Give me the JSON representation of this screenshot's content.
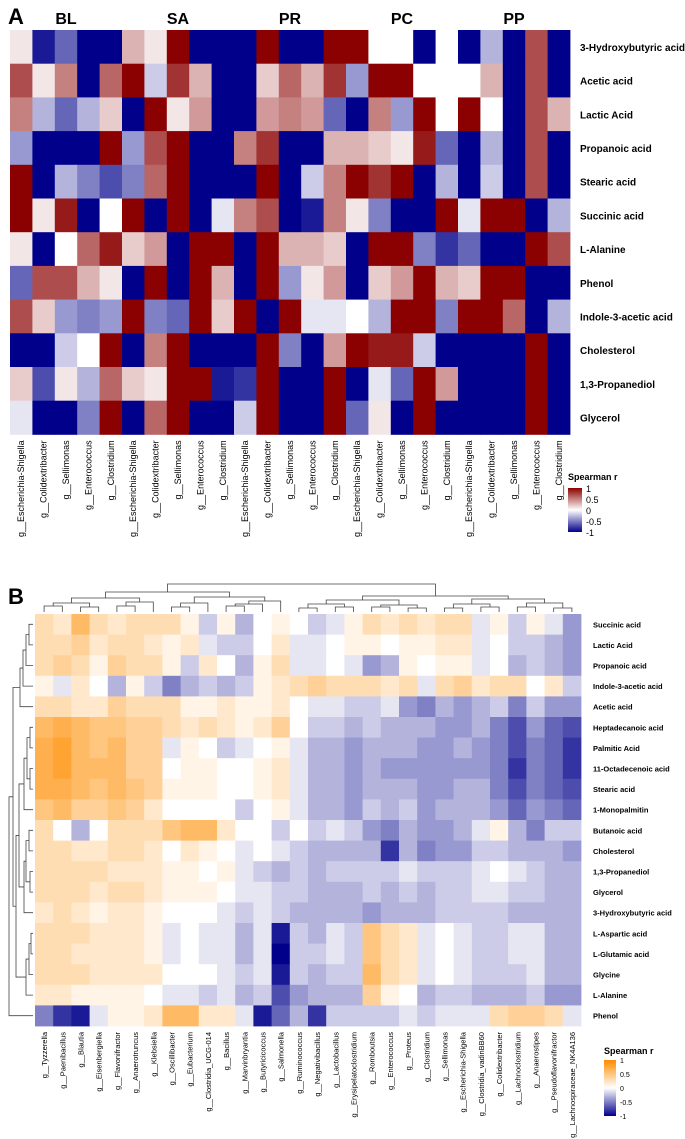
{
  "chart_data": [
    {
      "panel": "A",
      "type": "heatmap",
      "title": "",
      "groups": [
        "BL",
        "SA",
        "PR",
        "PC",
        "PP"
      ],
      "genera": [
        "g__Escherichia-Shigella",
        "g__Colidextribacter",
        "g__Sellimonas",
        "g__Enterococcus",
        "g__Clostridium"
      ],
      "metabolites": [
        "3-Hydroxybutyric acid",
        "Acetic acid",
        "Lactic Acid",
        "Propanoic acid",
        "Stearic acid",
        "Succinic acid",
        "L-Alanine",
        "Phenol",
        "Indole-3-acetic acid",
        "Cholesterol",
        "1,3-Propanediol",
        "Glycerol"
      ],
      "legend": {
        "title": "Spearman r",
        "ticks": [
          "1",
          "0.5",
          "0",
          "-0.5",
          "-1"
        ],
        "range": [
          -1,
          1
        ],
        "colors": {
          "neg": "#00008b",
          "mid": "#ffffff",
          "pos": "#8b0000"
        }
      },
      "values": {
        "BL": [
          [
            0.1,
            -0.9,
            -0.6,
            -1.0,
            -1.0
          ],
          [
            0.7,
            0.1,
            0.5,
            -1.0,
            0.6
          ],
          [
            0.5,
            -0.3,
            -0.6,
            -0.3,
            0.2
          ],
          [
            -0.4,
            -1.0,
            -1.0,
            -1.0,
            1.0
          ],
          [
            1.0,
            -1.0,
            -0.3,
            -0.5,
            -0.7
          ],
          [
            1.0,
            0.1,
            0.9,
            -1.0,
            0.0
          ],
          [
            0.1,
            -1.0,
            0.0,
            0.6,
            0.9
          ],
          [
            -0.6,
            0.7,
            0.7,
            0.3,
            0.1
          ],
          [
            0.7,
            0.2,
            -0.4,
            -0.5,
            -0.4
          ],
          [
            -1.0,
            -1.0,
            -0.2,
            0.0,
            1.0
          ],
          [
            0.2,
            -0.7,
            0.1,
            -0.3,
            0.6
          ],
          [
            -0.1,
            -1.0,
            -1.0,
            -0.5,
            1.0
          ]
        ],
        "SA": [
          [
            0.3,
            0.1,
            1.0,
            -1.0,
            -1.0
          ],
          [
            1.0,
            -0.2,
            0.8,
            0.3,
            -1.0
          ],
          [
            -1.0,
            1.0,
            0.1,
            0.4,
            -1.0
          ],
          [
            -0.4,
            0.7,
            1.0,
            -1.0,
            -1.0
          ],
          [
            -0.5,
            0.6,
            1.0,
            -1.0,
            -1.0
          ],
          [
            1.0,
            -1.0,
            1.0,
            -1.0,
            -0.1
          ],
          [
            0.2,
            0.4,
            -1.0,
            1.0,
            1.0
          ],
          [
            -1.0,
            1.0,
            -1.0,
            1.0,
            0.3
          ],
          [
            1.0,
            -0.5,
            -0.6,
            1.0,
            0.2
          ],
          [
            -1.0,
            0.5,
            1.0,
            -1.0,
            -1.0
          ],
          [
            0.2,
            0.1,
            1.0,
            1.0,
            -0.9
          ],
          [
            -1.0,
            0.6,
            1.0,
            -1.0,
            -1.0
          ]
        ],
        "PR": [
          [
            -1.0,
            1.0,
            -1.0,
            -1.0,
            1.0
          ],
          [
            -1.0,
            0.2,
            0.6,
            0.3,
            0.8
          ],
          [
            -1.0,
            0.4,
            0.5,
            0.4,
            -0.6
          ],
          [
            0.5,
            0.8,
            -1.0,
            -1.0,
            0.3
          ],
          [
            -1.0,
            1.0,
            -1.0,
            -0.2,
            0.5
          ],
          [
            0.5,
            0.7,
            -1.0,
            -0.9,
            0.5
          ],
          [
            -1.0,
            1.0,
            0.3,
            0.3,
            0.2
          ],
          [
            -1.0,
            1.0,
            -0.4,
            0.1,
            0.4
          ],
          [
            1.0,
            -1.0,
            1.0,
            -0.1,
            -0.1
          ],
          [
            -1.0,
            1.0,
            -0.5,
            -1.0,
            0.4
          ],
          [
            -0.8,
            1.0,
            -1.0,
            -1.0,
            1.0
          ],
          [
            -0.2,
            1.0,
            -1.0,
            -1.0,
            1.0
          ]
        ],
        "PC": [
          [
            1.0,
            0.0,
            0.0,
            -1.0,
            0.0
          ],
          [
            -0.4,
            1.0,
            1.0,
            0.0,
            0.0
          ],
          [
            -1.0,
            0.5,
            -0.4,
            1.0,
            0.0
          ],
          [
            0.3,
            0.2,
            0.1,
            0.9,
            -0.6
          ],
          [
            1.0,
            0.8,
            1.0,
            -1.0,
            -0.3
          ],
          [
            0.1,
            -0.5,
            -1.0,
            -1.0,
            1.0
          ],
          [
            -1.0,
            1.0,
            1.0,
            -0.5,
            -0.8
          ],
          [
            -1.0,
            0.2,
            0.4,
            1.0,
            0.3
          ],
          [
            0.0,
            -0.3,
            1.0,
            1.0,
            -0.5
          ],
          [
            1.0,
            0.9,
            0.9,
            -0.2,
            -1.0
          ],
          [
            -1.0,
            -0.1,
            -0.6,
            1.0,
            0.4
          ],
          [
            -0.6,
            0.1,
            -1.0,
            1.0,
            -1.0
          ]
        ],
        "PP": [
          [
            -1.0,
            -0.3,
            -1.0,
            0.7,
            -1.0
          ],
          [
            0.0,
            0.3,
            -1.0,
            0.7,
            -1.0
          ],
          [
            1.0,
            0.0,
            -1.0,
            0.7,
            0.3
          ],
          [
            -1.0,
            -0.3,
            -1.0,
            0.7,
            -1.0
          ],
          [
            -1.0,
            -0.2,
            -1.0,
            0.7,
            -1.0
          ],
          [
            -0.1,
            1.0,
            1.0,
            -1.0,
            -0.3
          ],
          [
            -0.6,
            -1.0,
            -1.0,
            1.0,
            0.7
          ],
          [
            0.2,
            1.0,
            1.0,
            -1.0,
            -1.0
          ],
          [
            1.0,
            1.0,
            0.6,
            -1.0,
            -0.3
          ],
          [
            -1.0,
            -1.0,
            -1.0,
            1.0,
            -1.0
          ],
          [
            -1.0,
            -1.0,
            -1.0,
            1.0,
            -1.0
          ],
          [
            -1.0,
            -1.0,
            -1.0,
            1.0,
            -1.0
          ]
        ]
      }
    },
    {
      "panel": "B",
      "type": "heatmap",
      "title": "",
      "genera": [
        "g__Tyzzerella",
        "g__Paenibacillus",
        "g__Blautia",
        "g__Eisenbergiella",
        "g__Flavonifractor",
        "g__Anaerotruncus",
        "g__Klebsiella",
        "g__Oscillibacter",
        "g__Eubacterium",
        "g__Clostridia_UCG-014",
        "g__Bacillus",
        "g__Marvinbryantia",
        "g__Butyricicoccus",
        "g__Salmonella",
        "g__Ruminococcus",
        "g__Negativibacillus",
        "g__Lactobacillus",
        "g__Erysipelatoclostridium",
        "g__Romboutsia",
        "g__Enterococcus",
        "g__Proteus",
        "g__Clostridium",
        "g__Sellimonas",
        "g__Escherichia-Shigella",
        "g__Clostridia_vadinBB60",
        "g__Colidextribacter",
        "g__Lachnoclostridium",
        "g__Anaerostipes",
        "g__Pseudoflavonifractor",
        "g__Lachnospiraceae_NK4A136"
      ],
      "metabolites": [
        "Succinic acid",
        "Lactic Acid",
        "Propanoic acid",
        "Indole-3-acetic acid",
        "Acetic acid",
        "Heptadecanoic acid",
        "Palmitic Acid",
        "11-Octadecenoic acid",
        "Stearic acid",
        "1-Monopalmitin",
        "Butanoic acid",
        "Cholesterol",
        "1,3-Propanediol",
        "Glycerol",
        "3-Hydroxybutyric acid",
        "L-Aspartic acid",
        "L-Glutamic acid",
        "Glycine",
        "L-Alanine",
        "Phenol"
      ],
      "legend": {
        "title": "Spearman r",
        "ticks": [
          "1",
          "0.5",
          "0",
          "-0.5",
          "-1"
        ],
        "range": [
          -1,
          1
        ],
        "colors": {
          "neg": "#00008b",
          "mid": "#ffffff",
          "pos": "#ff8c00"
        }
      },
      "values": [
        [
          0.3,
          0.2,
          0.6,
          0.3,
          0.2,
          0.3,
          0.3,
          0.3,
          0.1,
          -0.2,
          0.1,
          -0.3,
          0.0,
          0.1,
          0.0,
          -0.2,
          -0.1,
          0.1,
          0.3,
          0.2,
          0.3,
          0.2,
          0.3,
          0.3,
          -0.1,
          0.1,
          -0.2,
          0.1,
          -0.1,
          -0.4
        ],
        [
          0.3,
          0.3,
          0.4,
          0.2,
          0.3,
          0.3,
          0.2,
          0.1,
          0.2,
          -0.1,
          -0.2,
          -0.2,
          0.0,
          0.2,
          -0.1,
          -0.1,
          0.0,
          0.1,
          0.1,
          0.0,
          0.1,
          0.1,
          0.2,
          0.2,
          -0.1,
          0.0,
          -0.2,
          -0.2,
          -0.3,
          -0.4
        ],
        [
          0.3,
          0.4,
          0.3,
          0.1,
          0.4,
          0.3,
          0.3,
          0.1,
          -0.2,
          0.2,
          0.0,
          -0.3,
          0.1,
          0.3,
          -0.1,
          -0.1,
          0.0,
          -0.1,
          -0.4,
          -0.3,
          0.1,
          0.0,
          0.1,
          0.1,
          -0.1,
          0.0,
          -0.3,
          -0.2,
          -0.3,
          -0.4
        ],
        [
          0.1,
          -0.1,
          0.2,
          0.0,
          -0.3,
          0.1,
          -0.2,
          -0.5,
          -0.3,
          -0.2,
          -0.3,
          -0.2,
          0.1,
          0.2,
          0.3,
          0.4,
          0.3,
          0.3,
          0.3,
          0.2,
          0.3,
          -0.1,
          0.3,
          0.4,
          0.2,
          0.3,
          0.3,
          0.0,
          0.2,
          -0.2
        ],
        [
          0.3,
          0.3,
          0.2,
          0.2,
          0.4,
          0.3,
          0.3,
          0.3,
          0.1,
          0.1,
          0.2,
          0.1,
          0.1,
          0.2,
          0.0,
          -0.1,
          -0.1,
          -0.2,
          -0.2,
          -0.1,
          -0.4,
          -0.5,
          -0.3,
          -0.4,
          -0.3,
          -0.2,
          -0.5,
          -0.2,
          -0.4,
          -0.4
        ],
        [
          0.6,
          0.7,
          0.6,
          0.5,
          0.5,
          0.4,
          0.4,
          0.3,
          0.2,
          0.3,
          0.2,
          0.1,
          0.2,
          0.4,
          0.0,
          -0.2,
          -0.2,
          -0.3,
          -0.2,
          -0.3,
          -0.3,
          -0.3,
          -0.4,
          -0.4,
          -0.3,
          -0.5,
          -0.7,
          -0.4,
          -0.6,
          -0.7
        ],
        [
          0.7,
          0.8,
          0.6,
          0.5,
          0.6,
          0.4,
          0.4,
          -0.1,
          0.1,
          0.0,
          -0.2,
          -0.1,
          0.0,
          0.1,
          -0.1,
          -0.3,
          -0.3,
          -0.4,
          -0.3,
          -0.3,
          -0.3,
          -0.4,
          -0.4,
          -0.3,
          -0.4,
          -0.5,
          -0.7,
          -0.5,
          -0.6,
          -0.8
        ],
        [
          0.7,
          0.8,
          0.6,
          0.6,
          0.6,
          0.4,
          0.4,
          0.0,
          0.1,
          0.1,
          0.0,
          0.0,
          0.1,
          0.2,
          -0.1,
          -0.3,
          -0.3,
          -0.4,
          -0.3,
          -0.4,
          -0.4,
          -0.4,
          -0.4,
          -0.4,
          -0.4,
          -0.5,
          -0.8,
          -0.5,
          -0.6,
          -0.8
        ],
        [
          0.7,
          0.7,
          0.6,
          0.5,
          0.6,
          0.5,
          0.4,
          0.1,
          0.1,
          0.1,
          0.0,
          0.0,
          0.1,
          0.2,
          -0.1,
          -0.3,
          -0.3,
          -0.4,
          -0.3,
          -0.3,
          -0.3,
          -0.4,
          -0.4,
          -0.3,
          -0.3,
          -0.5,
          -0.7,
          -0.5,
          -0.6,
          -0.7
        ],
        [
          0.5,
          0.6,
          0.4,
          0.4,
          0.5,
          0.4,
          0.2,
          0.0,
          0.0,
          0.0,
          0.0,
          -0.2,
          0.0,
          0.1,
          -0.1,
          -0.3,
          -0.3,
          -0.4,
          -0.2,
          -0.3,
          -0.2,
          -0.4,
          -0.3,
          -0.3,
          -0.3,
          -0.4,
          -0.6,
          -0.4,
          -0.5,
          -0.6
        ],
        [
          0.3,
          0.0,
          -0.3,
          0.0,
          0.3,
          0.3,
          0.3,
          0.5,
          0.6,
          0.6,
          0.2,
          0.0,
          0.0,
          -0.2,
          0.0,
          -0.2,
          -0.1,
          -0.2,
          -0.4,
          -0.5,
          -0.3,
          -0.4,
          -0.4,
          -0.3,
          -0.1,
          0.1,
          -0.3,
          -0.5,
          -0.2,
          -0.2
        ],
        [
          0.3,
          0.3,
          0.2,
          0.2,
          0.3,
          0.3,
          0.2,
          0.0,
          0.2,
          0.1,
          0.0,
          -0.1,
          0.0,
          -0.1,
          -0.2,
          -0.3,
          -0.3,
          -0.3,
          -0.3,
          -0.8,
          -0.3,
          -0.5,
          -0.4,
          -0.4,
          -0.2,
          -0.2,
          -0.3,
          -0.3,
          -0.3,
          -0.4
        ],
        [
          0.3,
          0.3,
          0.3,
          0.3,
          0.2,
          0.2,
          0.2,
          0.1,
          0.1,
          0.0,
          0.1,
          -0.1,
          -0.2,
          -0.3,
          -0.2,
          -0.3,
          -0.2,
          -0.2,
          -0.2,
          -0.2,
          -0.1,
          -0.2,
          -0.2,
          -0.2,
          -0.1,
          0.0,
          -0.1,
          -0.2,
          -0.3,
          -0.3
        ],
        [
          0.3,
          0.3,
          0.3,
          0.2,
          0.3,
          0.3,
          0.2,
          0.1,
          0.1,
          0.1,
          0.0,
          -0.1,
          -0.1,
          -0.2,
          -0.2,
          -0.3,
          -0.3,
          -0.3,
          -0.2,
          -0.3,
          -0.2,
          -0.3,
          -0.2,
          -0.2,
          -0.1,
          -0.1,
          -0.2,
          -0.2,
          -0.3,
          -0.3
        ],
        [
          0.2,
          0.3,
          0.2,
          0.1,
          0.2,
          0.2,
          0.1,
          0.0,
          0.0,
          0.0,
          -0.1,
          -0.2,
          -0.1,
          -0.2,
          -0.3,
          -0.3,
          -0.3,
          -0.3,
          -0.4,
          -0.3,
          -0.3,
          -0.3,
          -0.2,
          -0.2,
          -0.2,
          -0.2,
          -0.3,
          -0.3,
          -0.3,
          -0.3
        ],
        [
          0.3,
          0.3,
          0.3,
          0.2,
          0.2,
          0.2,
          0.1,
          -0.1,
          0.0,
          -0.1,
          -0.1,
          -0.3,
          -0.1,
          -0.9,
          -0.2,
          -0.3,
          -0.1,
          -0.2,
          0.5,
          0.3,
          0.2,
          -0.1,
          0.0,
          -0.1,
          -0.2,
          -0.2,
          -0.1,
          -0.1,
          -0.3,
          -0.3
        ],
        [
          0.3,
          0.3,
          0.2,
          0.2,
          0.2,
          0.2,
          0.1,
          -0.1,
          0.0,
          -0.1,
          -0.1,
          -0.3,
          -0.1,
          -1.0,
          -0.2,
          -0.2,
          -0.1,
          -0.2,
          0.5,
          0.3,
          0.2,
          -0.1,
          0.0,
          -0.1,
          -0.2,
          -0.2,
          -0.1,
          -0.1,
          -0.3,
          -0.3
        ],
        [
          0.3,
          0.3,
          0.3,
          0.2,
          0.2,
          0.2,
          0.2,
          0.0,
          0.0,
          0.0,
          -0.1,
          -0.2,
          -0.1,
          -0.9,
          -0.2,
          -0.3,
          -0.2,
          -0.2,
          0.6,
          0.3,
          0.2,
          -0.1,
          0.0,
          -0.1,
          -0.2,
          -0.2,
          -0.2,
          -0.1,
          -0.3,
          -0.3
        ],
        [
          0.2,
          0.2,
          0.1,
          0.1,
          0.1,
          0.1,
          0.0,
          -0.1,
          -0.1,
          -0.2,
          -0.1,
          -0.3,
          -0.2,
          -0.7,
          -0.4,
          -0.3,
          -0.3,
          -0.3,
          0.4,
          0.1,
          0.0,
          -0.3,
          -0.2,
          -0.2,
          -0.3,
          -0.3,
          -0.3,
          -0.2,
          -0.4,
          -0.4
        ],
        [
          -0.5,
          -0.8,
          -0.9,
          -0.1,
          0.1,
          0.1,
          0.2,
          0.6,
          0.6,
          0.2,
          0.2,
          -0.1,
          -0.9,
          -0.6,
          -0.3,
          -0.8,
          -0.2,
          -0.2,
          -0.2,
          -0.2,
          -0.1,
          -0.2,
          -0.1,
          -0.1,
          -0.1,
          0.3,
          0.4,
          0.4,
          0.3,
          -0.1
        ]
      ]
    }
  ],
  "panel_labels": {
    "a": "A",
    "b": "B"
  }
}
